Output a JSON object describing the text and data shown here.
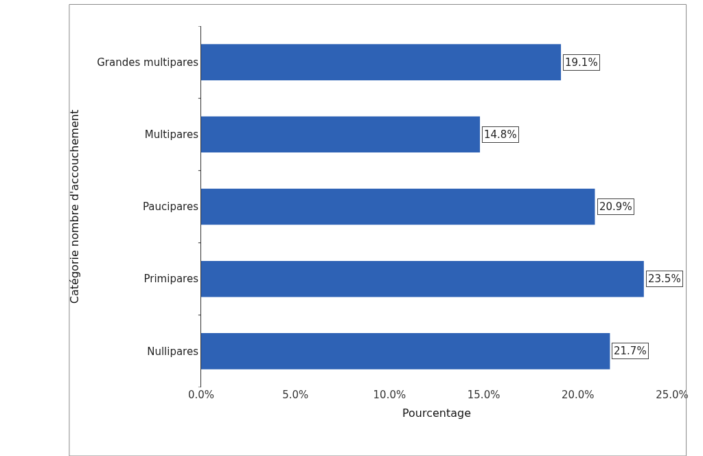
{
  "chart_data": {
    "type": "bar",
    "orientation": "horizontal",
    "categories": [
      "Grandes multipares",
      "Multipares",
      "Paucipares",
      "Primipares",
      "Nullipares"
    ],
    "values": [
      19.1,
      14.8,
      20.9,
      23.5,
      21.7
    ],
    "value_labels": [
      "19.1%",
      "14.8%",
      "20.9%",
      "23.5%",
      "21.7%"
    ],
    "color": "#2e62b5",
    "xlabel": "Pourcentage",
    "ylabel": "Catégorie nombre d'accouchement",
    "xlim": [
      0,
      25
    ],
    "xticks": [
      {
        "value": 0,
        "label": "0.0%"
      },
      {
        "value": 5,
        "label": "5.0%"
      },
      {
        "value": 10,
        "label": "10.0%"
      },
      {
        "value": 15,
        "label": "15.0%"
      },
      {
        "value": 20,
        "label": "20.0%"
      },
      {
        "value": 25,
        "label": "25.0%"
      }
    ],
    "legend": false
  }
}
